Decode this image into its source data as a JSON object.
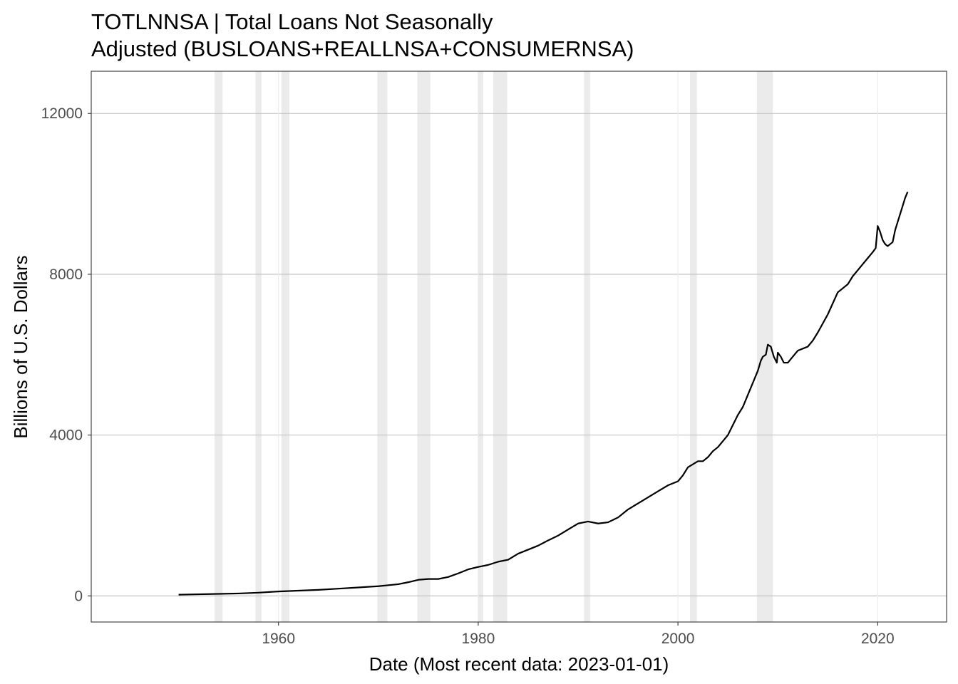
{
  "chart_data": {
    "type": "line",
    "title": [
      "TOTLNNSA | Total Loans Not Seasonally",
      "Adjusted (BUSLOANS+REALLNSA+CONSUMERNSA)"
    ],
    "xlabel": "Date (Most recent data: 2023-01-01)",
    "ylabel": "Billions of U.S. Dollars",
    "xlim": [
      1941.25,
      2026.9
    ],
    "ylim": [
      -650,
      13050
    ],
    "x_ticks": [
      1960,
      1980,
      2000,
      2020
    ],
    "x_tick_labels": [
      "1960",
      "1980",
      "2000",
      "2020"
    ],
    "y_ticks": [
      0,
      4000,
      8000,
      12000
    ],
    "y_tick_labels": [
      "0",
      "4000",
      "8000",
      "12000"
    ],
    "grid": true,
    "legend": "none",
    "colors": {
      "line": "#000000",
      "recession": "#ebebeb",
      "grid": "#bebebe",
      "border": "#333333"
    },
    "recessions": [
      [
        1953.6,
        1954.4
      ],
      [
        1957.7,
        1958.3
      ],
      [
        1960.3,
        1961.1
      ],
      [
        1969.9,
        1970.9
      ],
      [
        1973.9,
        1975.2
      ],
      [
        1980.0,
        1980.5
      ],
      [
        1981.5,
        1982.9
      ],
      [
        1990.6,
        1991.2
      ],
      [
        2001.2,
        2001.9
      ],
      [
        2007.9,
        2009.5
      ]
    ],
    "series": [
      {
        "x": [
          1950.0,
          1952.0,
          1954.0,
          1956.0,
          1958.0,
          1960.0,
          1962.0,
          1964.0,
          1966.0,
          1968.0,
          1970.0,
          1972.0,
          1973.0,
          1974.0,
          1975.0,
          1976.0,
          1977.0,
          1978.0,
          1979.0,
          1980.0,
          1981.0,
          1982.0,
          1983.0,
          1984.0,
          1985.0,
          1986.0,
          1987.0,
          1988.0,
          1989.0,
          1990.0,
          1991.0,
          1992.0,
          1993.0,
          1994.0,
          1995.0,
          1996.0,
          1997.0,
          1998.0,
          1999.0,
          2000.0,
          2000.5,
          2001.0,
          2002.0,
          2002.5,
          2003.0,
          2003.5,
          2004.0,
          2005.0,
          2006.0,
          2006.5,
          2007.0,
          2007.5,
          2008.0,
          2008.3,
          2008.5,
          2008.8,
          2009.0,
          2009.3,
          2009.6,
          2009.9,
          2010.0,
          2010.3,
          2010.6,
          2011.0,
          2011.5,
          2012.0,
          2012.5,
          2013.0,
          2013.5,
          2014.0,
          2015.0,
          2016.0,
          2016.5,
          2017.0,
          2017.5,
          2018.0,
          2018.5,
          2019.0,
          2019.5,
          2019.8,
          2020.0,
          2020.25,
          2020.5,
          2020.75,
          2021.0,
          2021.5,
          2021.75,
          2022.0,
          2022.25,
          2022.5,
          2022.75,
          2023.0
        ],
        "y": [
          30,
          40,
          50,
          60,
          80,
          110,
          130,
          150,
          180,
          210,
          240,
          290,
          340,
          400,
          420,
          420,
          470,
          560,
          660,
          720,
          770,
          850,
          900,
          1050,
          1150,
          1250,
          1380,
          1500,
          1650,
          1800,
          1850,
          1800,
          1830,
          1950,
          2150,
          2300,
          2450,
          2600,
          2750,
          2850,
          3000,
          3200,
          3350,
          3350,
          3450,
          3600,
          3700,
          4000,
          4500,
          4700,
          5000,
          5300,
          5600,
          5850,
          5950,
          6000,
          6250,
          6200,
          5950,
          5800,
          6050,
          5950,
          5800,
          5800,
          5950,
          6100,
          6150,
          6200,
          6350,
          6550,
          7000,
          7550,
          7650,
          7750,
          7950,
          8100,
          8250,
          8400,
          8550,
          8650,
          9200,
          9050,
          8850,
          8750,
          8700,
          8800,
          9100,
          9300,
          9500,
          9700,
          9900,
          10050
        ]
      }
    ]
  }
}
